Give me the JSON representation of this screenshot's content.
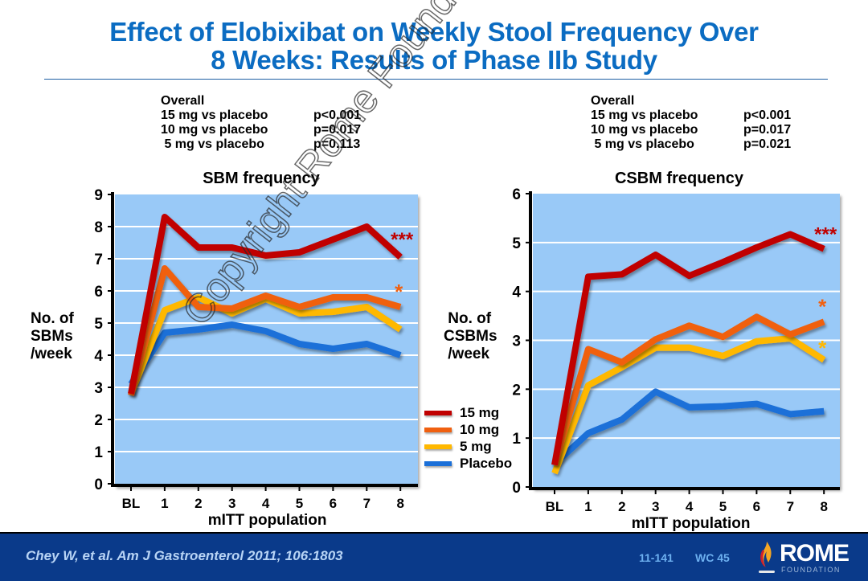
{
  "slide": {
    "title_line1": "Effect of Elobixibat on Weekly Stool Frequency Over",
    "title_line2": "8 Weeks: Results of Phase IIb Study",
    "watermark": "Copyright Rome Foundation"
  },
  "footer": {
    "citation": "Chey W, et al. Am J Gastroenterol 2011; 106:1803",
    "slide_code": "11-141",
    "wc_code": "WC 45",
    "logo_word": "ROME",
    "logo_sub": "FOUNDATION",
    "logo_icon": "flame-icon"
  },
  "colors": {
    "title": "#0b6cc2",
    "plot_bg": "#99c9f7",
    "footer_bg": "#0a3a8a",
    "15mg": "#c00000",
    "10mg": "#f06010",
    "5mg": "#ffb800",
    "placebo": "#1a6fd8"
  },
  "legend": [
    {
      "label": "15 mg",
      "color": "#c00000"
    },
    {
      "label": "10 mg",
      "color": "#f06010"
    },
    {
      "label": "5 mg",
      "color": "#ffb800"
    },
    {
      "label": "Placebo",
      "color": "#1a6fd8"
    }
  ],
  "chart_data": [
    {
      "type": "line",
      "title": "SBM frequency",
      "xlabel": "mITT population",
      "ylabel": "No. of SBMs /week",
      "ylim": [
        0,
        9
      ],
      "yticks": [
        "0",
        "1",
        "2",
        "3",
        "4",
        "5",
        "6",
        "7",
        "8",
        "9"
      ],
      "categories": [
        "BL",
        "1",
        "2",
        "3",
        "4",
        "5",
        "6",
        "7",
        "8"
      ],
      "grid": true,
      "stats_header": "Overall",
      "stats": [
        {
          "comparison": "15 mg vs placebo",
          "p": "p<0.001"
        },
        {
          "comparison": "10 mg vs placebo",
          "p": "p=0.017"
        },
        {
          "comparison": " 5 mg vs placebo",
          "p": "p=0.113"
        }
      ],
      "series": [
        {
          "name": "15 mg",
          "values": [
            2.8,
            8.3,
            7.35,
            7.35,
            7.1,
            7.2,
            7.6,
            8.0,
            7.05
          ],
          "annotation": "***"
        },
        {
          "name": "10 mg",
          "values": [
            2.75,
            6.7,
            5.5,
            5.45,
            5.85,
            5.5,
            5.8,
            5.8,
            5.5
          ],
          "annotation": "*"
        },
        {
          "name": "5 mg",
          "values": [
            2.8,
            5.4,
            5.8,
            5.3,
            5.75,
            5.3,
            5.35,
            5.5,
            4.8
          ],
          "annotation": ""
        },
        {
          "name": "Placebo",
          "values": [
            3.1,
            4.7,
            4.8,
            4.95,
            4.75,
            4.35,
            4.2,
            4.35,
            4.0
          ],
          "annotation": ""
        }
      ]
    },
    {
      "type": "line",
      "title": "CSBM frequency",
      "xlabel": "mITT population",
      "ylabel": "No. of CSBMs /week",
      "ylim": [
        0,
        6
      ],
      "yticks": [
        "0",
        "1",
        "2",
        "3",
        "4",
        "5",
        "6"
      ],
      "categories": [
        "BL",
        "1",
        "2",
        "3",
        "4",
        "5",
        "6",
        "7",
        "8"
      ],
      "grid": true,
      "stats_header": "Overall",
      "stats": [
        {
          "comparison": "15 mg vs placebo",
          "p": "p<0.001"
        },
        {
          "comparison": "10 mg vs placebo",
          "p": "p=0.017"
        },
        {
          "comparison": " 5 mg vs placebo",
          "p": "p=0.021"
        }
      ],
      "series": [
        {
          "name": "15 mg",
          "values": [
            0.45,
            4.3,
            4.35,
            4.75,
            4.32,
            4.6,
            4.9,
            5.17,
            4.87
          ],
          "annotation": "***"
        },
        {
          "name": "10 mg",
          "values": [
            0.45,
            2.82,
            2.55,
            3.02,
            3.3,
            3.07,
            3.48,
            3.12,
            3.38
          ],
          "annotation": "*"
        },
        {
          "name": "5 mg",
          "values": [
            0.28,
            2.08,
            2.45,
            2.85,
            2.85,
            2.68,
            2.98,
            3.04,
            2.6
          ],
          "annotation": "*"
        },
        {
          "name": "Placebo",
          "values": [
            0.47,
            1.1,
            1.38,
            1.95,
            1.63,
            1.65,
            1.7,
            1.49,
            1.55
          ],
          "annotation": ""
        }
      ]
    }
  ]
}
